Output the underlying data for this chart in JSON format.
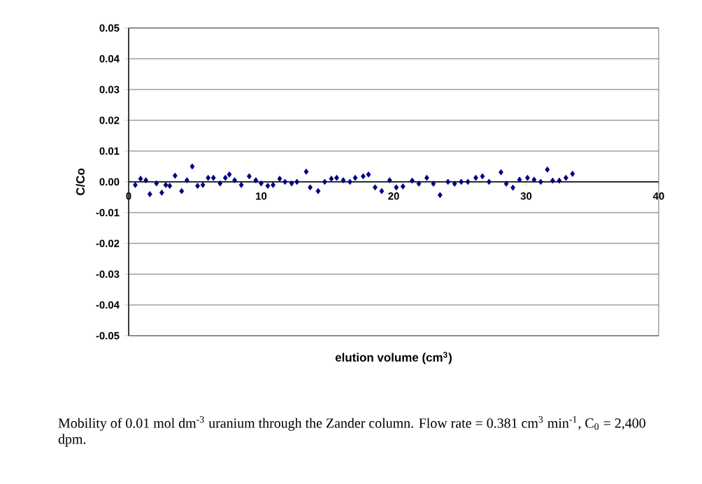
{
  "chart_data": {
    "type": "scatter",
    "xlabel": "elution volume (cm$^{3}$)",
    "ylabel": "C/Co",
    "annotations": [
      "Mobility of 0.01 mol dm$^{-3}$ uranium through the Zander column. Flow rate = 0.381 cm$^{3}$ min$^{-1}$, C$_{0}$ = 2,400 dpm."
    ],
    "x": [
      0.5,
      0.9,
      1.3,
      1.6,
      2.1,
      2.5,
      2.8,
      3.1,
      3.5,
      4.0,
      4.4,
      4.8,
      5.2,
      5.6,
      6.0,
      6.4,
      6.9,
      7.3,
      7.6,
      8.0,
      8.5,
      9.1,
      9.6,
      10.0,
      10.5,
      10.9,
      11.4,
      11.8,
      12.3,
      12.7,
      13.4,
      13.7,
      14.3,
      14.8,
      15.3,
      15.7,
      16.2,
      16.7,
      17.1,
      17.7,
      18.1,
      18.6,
      19.1,
      19.7,
      20.2,
      20.7,
      21.4,
      21.9,
      22.5,
      23.0,
      23.5,
      24.1,
      24.6,
      25.1,
      25.6,
      26.2,
      26.7,
      27.2,
      28.1,
      28.5,
      29.0,
      29.5,
      30.1,
      30.6,
      31.1,
      31.6,
      32.0,
      32.5,
      33.0,
      33.5
    ],
    "values": [
      -0.001,
      0.001,
      0.0005,
      -0.004,
      -0.0005,
      -0.0035,
      -0.001,
      -0.0013,
      0.002,
      -0.003,
      0.0005,
      0.005,
      -0.0013,
      -0.001,
      0.0013,
      0.0013,
      -0.0005,
      0.0013,
      0.0024,
      0.0005,
      -0.001,
      0.0018,
      0.0005,
      -0.0005,
      -0.0013,
      -0.001,
      0.001,
      0,
      -0.0005,
      0,
      0.0033,
      -0.0018,
      -0.003,
      0,
      0.001,
      0.0013,
      0.0005,
      0,
      0.0013,
      0.0018,
      0.0024,
      -0.0018,
      -0.003,
      0.0005,
      -0.0018,
      -0.0015,
      0.0004,
      -0.0006,
      0.0013,
      -0.0006,
      -0.0043,
      0,
      -0.0006,
      0,
      0,
      0.0013,
      0.0018,
      0,
      0.0031,
      -0.0006,
      -0.0019,
      0.0007,
      0.0013,
      0.0007,
      0,
      0.004,
      0.0004,
      0.0004,
      0.0013,
      0.0026
    ],
    "color": "#000080",
    "marker": "diamond",
    "grid": "y",
    "xlim": [
      0,
      40
    ],
    "xticks": [
      0,
      10,
      20,
      30,
      40
    ],
    "ylim": [
      -0.05,
      0.05
    ],
    "yticks": [
      -0.05,
      -0.04,
      -0.03,
      -0.02,
      -0.01,
      {
        "value": 0,
        "label": "0.00"
      },
      0.01,
      0.02,
      0.03,
      0.04,
      0.05
    ]
  }
}
